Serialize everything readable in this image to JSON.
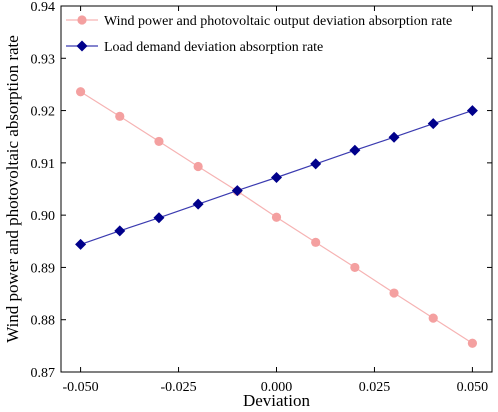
{
  "chart_data": {
    "type": "line",
    "title": "",
    "xlabel": "Deviation",
    "ylabel": "Wind power and photovoltaic absorption rate",
    "xlim": [
      -0.055,
      0.055
    ],
    "ylim": [
      0.87,
      0.94
    ],
    "x_ticks": [
      -0.05,
      -0.025,
      0.0,
      0.025,
      0.05
    ],
    "x_tick_labels": [
      "-0.050",
      "-0.025",
      "0.000",
      "0.025",
      "0.050"
    ],
    "y_ticks": [
      0.87,
      0.88,
      0.89,
      0.9,
      0.91,
      0.92,
      0.93,
      0.94
    ],
    "y_tick_labels": [
      "0.87",
      "0.88",
      "0.89",
      "0.90",
      "0.91",
      "0.92",
      "0.93",
      "0.94"
    ],
    "grid": false,
    "legend_position": "top-left",
    "x": [
      -0.05,
      -0.04,
      -0.03,
      -0.02,
      -0.01,
      0.0,
      0.01,
      0.02,
      0.03,
      0.04,
      0.05
    ],
    "series": [
      {
        "name": "Wind power and photovoltaic output deviation absorption rate",
        "marker": "circle",
        "color": "#f4a0a0",
        "line_color": "#f6b3b3",
        "values": [
          0.9236,
          0.9189,
          0.9141,
          0.9093,
          0.9046,
          0.8996,
          0.8948,
          0.89,
          0.8851,
          0.8803,
          0.8755
        ]
      },
      {
        "name": "Load demand deviation absorption rate",
        "marker": "diamond",
        "color": "#00008b",
        "line_color": "#3b3bb0",
        "values": [
          0.8944,
          0.897,
          0.8995,
          0.9021,
          0.9047,
          0.9072,
          0.9098,
          0.9124,
          0.9149,
          0.9175,
          0.92
        ]
      }
    ]
  }
}
